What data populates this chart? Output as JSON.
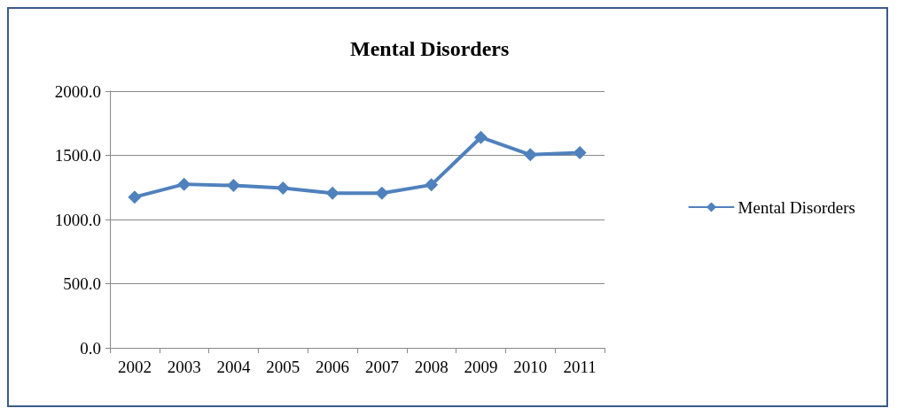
{
  "chart_data": {
    "type": "line",
    "title": "Mental Disorders",
    "categories": [
      "2002",
      "2003",
      "2004",
      "2005",
      "2006",
      "2007",
      "2008",
      "2009",
      "2010",
      "2011"
    ],
    "series": [
      {
        "name": "Mental Disorders",
        "color": "#4f81bd",
        "values": [
          1175,
          1275,
          1265,
          1245,
          1205,
          1205,
          1270,
          1640,
          1505,
          1520
        ]
      }
    ],
    "ylim": [
      0,
      2000
    ],
    "yticks": [
      {
        "value": 0,
        "label": "0.0"
      },
      {
        "value": 500,
        "label": "500.0"
      },
      {
        "value": 1000,
        "label": "1000.0"
      },
      {
        "value": 1500,
        "label": "1500.0"
      },
      {
        "value": 2000,
        "label": "2000.0"
      }
    ],
    "grid": "y",
    "legend": "right",
    "marker": "diamond",
    "line_style": "solid"
  }
}
